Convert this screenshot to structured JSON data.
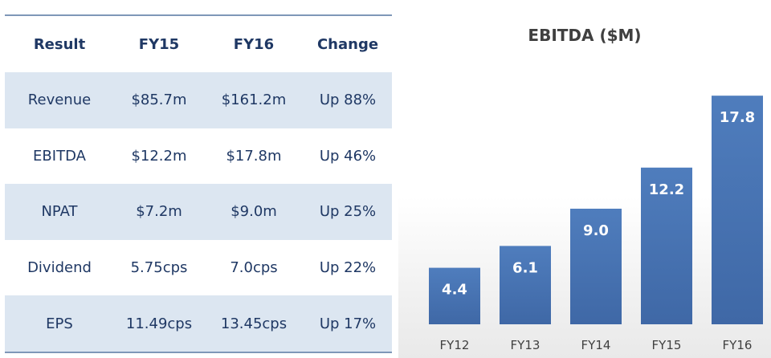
{
  "table": {
    "headers": [
      "Result",
      "FY15",
      "FY16",
      "Change"
    ],
    "rows": [
      [
        "Revenue",
        "$85.7m",
        "$161.2m",
        "Up 88%"
      ],
      [
        "EBITDA",
        "$12.2m",
        "$17.8m",
        "Up 46%"
      ],
      [
        "NPAT",
        "$7.2m",
        "$9.0m",
        "Up 25%"
      ],
      [
        "Dividend",
        "5.75cps",
        "7.0cps",
        "Up 22%"
      ],
      [
        "EPS",
        "11.49cps",
        "13.45cps",
        "Up 17%"
      ]
    ],
    "colors": {
      "header_text": "#1f3864",
      "shaded_row": "#dce6f1",
      "border": "#7f97b8"
    }
  },
  "chart_data": {
    "type": "bar",
    "title": "EBITDA ($M)",
    "categories": [
      "FY12",
      "FY13",
      "FY14",
      "FY15",
      "FY16"
    ],
    "values": [
      4.4,
      6.1,
      9.0,
      12.2,
      17.8
    ],
    "data_labels": [
      "4.4",
      "6.1",
      "9.0",
      "12.2",
      "17.8"
    ],
    "xlabel": "",
    "ylabel": "",
    "ylim": [
      0,
      20
    ],
    "grid": false,
    "legend": "none",
    "bar_color": "#4a76b5"
  }
}
